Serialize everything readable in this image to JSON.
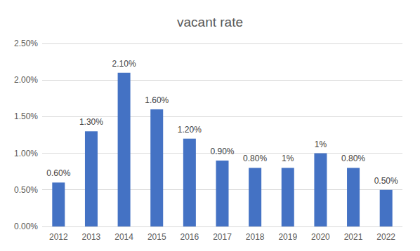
{
  "chart_data": {
    "type": "bar",
    "title": "vacant rate",
    "categories": [
      "2012",
      "2013",
      "2014",
      "2015",
      "2016",
      "2017",
      "2018",
      "2019",
      "2020",
      "2021",
      "2022"
    ],
    "values": [
      0.6,
      1.3,
      2.1,
      1.6,
      1.2,
      0.9,
      0.8,
      0.8,
      1.0,
      0.8,
      0.5
    ],
    "value_labels": [
      "0.60%",
      "1.30%",
      "2.10%",
      "1.60%",
      "1.20%",
      "0.90%",
      "0.80%",
      "1%",
      "1%",
      "0.80%",
      "0.50%"
    ],
    "color": "#4472c4",
    "ylim": [
      0,
      2.5
    ],
    "yticks": [
      {
        "value": 0,
        "label": "0.00%"
      },
      {
        "value": 0.5,
        "label": "0.50%"
      },
      {
        "value": 1.0,
        "label": "1.00%"
      },
      {
        "value": 1.5,
        "label": "1.50%"
      },
      {
        "value": 2.0,
        "label": "2.00%"
      },
      {
        "value": 2.5,
        "label": "2.50%"
      }
    ],
    "grid": true,
    "data_labels": true
  }
}
